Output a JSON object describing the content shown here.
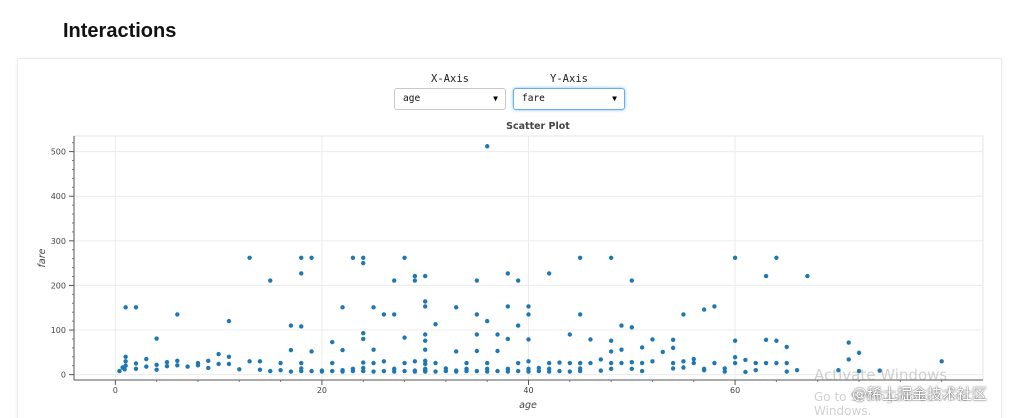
{
  "page": {
    "title": "Interactions"
  },
  "controls": {
    "x_axis": {
      "label": "X-Axis",
      "selected": "age"
    },
    "y_axis": {
      "label": "Y-Axis",
      "selected": "fare"
    }
  },
  "watermarks": {
    "activate_line1": "Activate Windows",
    "activate_line2": "Go to Settings to activate Windows.",
    "site": "@稀土掘金技术社区"
  },
  "icons": {
    "caret": "caret-down-icon"
  },
  "colors": {
    "point": "#1f77b4",
    "focus_border": "#66afe9"
  },
  "chart_data": {
    "type": "scatter",
    "title": "Scatter Plot",
    "xlabel": "age",
    "ylabel": "fare",
    "xlim": [
      -4,
      84
    ],
    "ylim": [
      -12,
      535
    ],
    "xticks": [
      0,
      20,
      40,
      60
    ],
    "yticks": [
      0,
      100,
      200,
      300,
      400,
      500
    ],
    "grid": true,
    "series": [
      {
        "points": [
          [
            36,
            512
          ],
          [
            13,
            262
          ],
          [
            18,
            262
          ],
          [
            19,
            262
          ],
          [
            23,
            262
          ],
          [
            24,
            262
          ],
          [
            24,
            250
          ],
          [
            28,
            262
          ],
          [
            45,
            262
          ],
          [
            48,
            262
          ],
          [
            60,
            262
          ],
          [
            64,
            262
          ],
          [
            15,
            211
          ],
          [
            18,
            227
          ],
          [
            27,
            211
          ],
          [
            29,
            221
          ],
          [
            29,
            211
          ],
          [
            30,
            221
          ],
          [
            35,
            211
          ],
          [
            38,
            227
          ],
          [
            39,
            211
          ],
          [
            42,
            227
          ],
          [
            50,
            211
          ],
          [
            63,
            221
          ],
          [
            67,
            221
          ],
          [
            1,
            151
          ],
          [
            2,
            151
          ],
          [
            6,
            135
          ],
          [
            11,
            120
          ],
          [
            22,
            151
          ],
          [
            25,
            151
          ],
          [
            26,
            135
          ],
          [
            27,
            135
          ],
          [
            30,
            164
          ],
          [
            30,
            153
          ],
          [
            33,
            151
          ],
          [
            35,
            135
          ],
          [
            36,
            120
          ],
          [
            38,
            153
          ],
          [
            40,
            153
          ],
          [
            40,
            135
          ],
          [
            45,
            135
          ],
          [
            55,
            135
          ],
          [
            57,
            146
          ],
          [
            58,
            153
          ],
          [
            4,
            81
          ],
          [
            17,
            110
          ],
          [
            18,
            108
          ],
          [
            21,
            73
          ],
          [
            24,
            93
          ],
          [
            24,
            80
          ],
          [
            28,
            83
          ],
          [
            30,
            90
          ],
          [
            31,
            113
          ],
          [
            37,
            90
          ],
          [
            39,
            110
          ],
          [
            44,
            90
          ],
          [
            49,
            110
          ],
          [
            50,
            106
          ],
          [
            54,
            78
          ],
          [
            60,
            76
          ],
          [
            63,
            78
          ],
          [
            71,
            72
          ],
          [
            72,
            49
          ],
          [
            72,
            8
          ],
          [
            74,
            9
          ],
          [
            80,
            30
          ],
          [
            0.4,
            8
          ],
          [
            0.7,
            16
          ],
          [
            0.9,
            12
          ],
          [
            1,
            20
          ],
          [
            1,
            30
          ],
          [
            1,
            40
          ],
          [
            2,
            25
          ],
          [
            2,
            13
          ],
          [
            3,
            18
          ],
          [
            3,
            35
          ],
          [
            4,
            22
          ],
          [
            4,
            11
          ],
          [
            5,
            28
          ],
          [
            5,
            19
          ],
          [
            6,
            21
          ],
          [
            6,
            31
          ],
          [
            7,
            18
          ],
          [
            8,
            26
          ],
          [
            8,
            21
          ],
          [
            9,
            31
          ],
          [
            9,
            15
          ],
          [
            10,
            46
          ],
          [
            10,
            24
          ],
          [
            11,
            24
          ],
          [
            11,
            40
          ],
          [
            12,
            12
          ],
          [
            13,
            30
          ],
          [
            14,
            11
          ],
          [
            14,
            30
          ],
          [
            15,
            8
          ],
          [
            16,
            10
          ],
          [
            16,
            26
          ],
          [
            17,
            7
          ],
          [
            17,
            55
          ],
          [
            18,
            8
          ],
          [
            18,
            14
          ],
          [
            18,
            26
          ],
          [
            19,
            8
          ],
          [
            19,
            52
          ],
          [
            20,
            7
          ],
          [
            20,
            9
          ],
          [
            21,
            8
          ],
          [
            21,
            26
          ],
          [
            22,
            7
          ],
          [
            22,
            10
          ],
          [
            22,
            55
          ],
          [
            23,
            8
          ],
          [
            23,
            13
          ],
          [
            24,
            8
          ],
          [
            24,
            15
          ],
          [
            24,
            27
          ],
          [
            25,
            7
          ],
          [
            25,
            26
          ],
          [
            25,
            56
          ],
          [
            26,
            8
          ],
          [
            26,
            30
          ],
          [
            27,
            7
          ],
          [
            27,
            13
          ],
          [
            28,
            8
          ],
          [
            28,
            26
          ],
          [
            29,
            7
          ],
          [
            29,
            9
          ],
          [
            29,
            30
          ],
          [
            30,
            7
          ],
          [
            30,
            8
          ],
          [
            30,
            10
          ],
          [
            30,
            13
          ],
          [
            30,
            24
          ],
          [
            30,
            31
          ],
          [
            30,
            56
          ],
          [
            30,
            76
          ],
          [
            31,
            7
          ],
          [
            31,
            26
          ],
          [
            32,
            8
          ],
          [
            32,
            14
          ],
          [
            33,
            7
          ],
          [
            33,
            9
          ],
          [
            33,
            52
          ],
          [
            34,
            8
          ],
          [
            34,
            13
          ],
          [
            34,
            26
          ],
          [
            35,
            8
          ],
          [
            35,
            53
          ],
          [
            35,
            90
          ],
          [
            36,
            7
          ],
          [
            36,
            13
          ],
          [
            36,
            26
          ],
          [
            37,
            8
          ],
          [
            37,
            53
          ],
          [
            38,
            7
          ],
          [
            38,
            13
          ],
          [
            38,
            80
          ],
          [
            39,
            8
          ],
          [
            39,
            26
          ],
          [
            40,
            7
          ],
          [
            40,
            13
          ],
          [
            40,
            30
          ],
          [
            40,
            79
          ],
          [
            41,
            8
          ],
          [
            41,
            15
          ],
          [
            42,
            7
          ],
          [
            42,
            13
          ],
          [
            42,
            26
          ],
          [
            43,
            8
          ],
          [
            43,
            27
          ],
          [
            44,
            7
          ],
          [
            44,
            26
          ],
          [
            45,
            8
          ],
          [
            45,
            14
          ],
          [
            45,
            26
          ],
          [
            46,
            26
          ],
          [
            46,
            79
          ],
          [
            47,
            9
          ],
          [
            47,
            34
          ],
          [
            48,
            13
          ],
          [
            48,
            26
          ],
          [
            48,
            52
          ],
          [
            48,
            76
          ],
          [
            49,
            26
          ],
          [
            49,
            56
          ],
          [
            50,
            13
          ],
          [
            50,
            28
          ],
          [
            51,
            8
          ],
          [
            51,
            26
          ],
          [
            51,
            61
          ],
          [
            52,
            30
          ],
          [
            52,
            79
          ],
          [
            53,
            51
          ],
          [
            54,
            14
          ],
          [
            54,
            26
          ],
          [
            54,
            60
          ],
          [
            55,
            16
          ],
          [
            55,
            30
          ],
          [
            56,
            26
          ],
          [
            56,
            35
          ],
          [
            57,
            10
          ],
          [
            57,
            13
          ],
          [
            58,
            26
          ],
          [
            59,
            7
          ],
          [
            59,
            14
          ],
          [
            60,
            26
          ],
          [
            60,
            39
          ],
          [
            61,
            6
          ],
          [
            61,
            33
          ],
          [
            62,
            10
          ],
          [
            62,
            26
          ],
          [
            63,
            26
          ],
          [
            64,
            26
          ],
          [
            64,
            76
          ],
          [
            65,
            7
          ],
          [
            65,
            26
          ],
          [
            65,
            62
          ],
          [
            66,
            10
          ],
          [
            70,
            10
          ],
          [
            71,
            34
          ]
        ]
      }
    ]
  }
}
